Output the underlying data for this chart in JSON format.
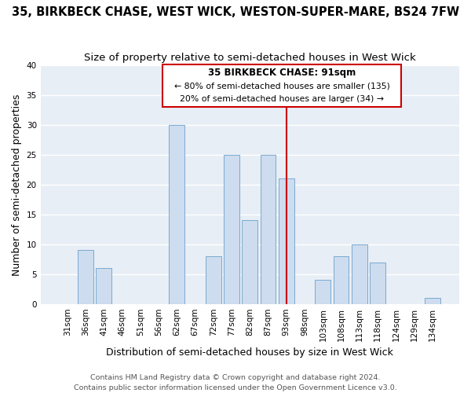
{
  "title": "35, BIRKBECK CHASE, WEST WICK, WESTON-SUPER-MARE, BS24 7FW",
  "subtitle": "Size of property relative to semi-detached houses in West Wick",
  "xlabel": "Distribution of semi-detached houses by size in West Wick",
  "ylabel": "Number of semi-detached properties",
  "bar_labels": [
    "31sqm",
    "36sqm",
    "41sqm",
    "46sqm",
    "51sqm",
    "56sqm",
    "62sqm",
    "67sqm",
    "72sqm",
    "77sqm",
    "82sqm",
    "87sqm",
    "93sqm",
    "98sqm",
    "103sqm",
    "108sqm",
    "113sqm",
    "118sqm",
    "124sqm",
    "129sqm",
    "134sqm"
  ],
  "bar_values": [
    0,
    9,
    6,
    0,
    0,
    0,
    30,
    0,
    8,
    25,
    14,
    25,
    21,
    0,
    4,
    8,
    10,
    7,
    0,
    0,
    1
  ],
  "bar_color": "#cddcee",
  "bar_edge_color": "#7aaad0",
  "vline_x_index": 12,
  "vline_color": "#cc0000",
  "ylim": [
    0,
    40
  ],
  "yticks": [
    0,
    5,
    10,
    15,
    20,
    25,
    30,
    35,
    40
  ],
  "annotation_title": "35 BIRKBECK CHASE: 91sqm",
  "annotation_line1": "← 80% of semi-detached houses are smaller (135)",
  "annotation_line2": "20% of semi-detached houses are larger (34) →",
  "footer1": "Contains HM Land Registry data © Crown copyright and database right 2024.",
  "footer2": "Contains public sector information licensed under the Open Government Licence v3.0.",
  "background_color": "#ffffff",
  "plot_bg_color": "#e8eef5",
  "grid_color": "#ffffff",
  "title_fontsize": 10.5,
  "subtitle_fontsize": 9.5,
  "axis_label_fontsize": 9,
  "tick_fontsize": 7.5,
  "footer_fontsize": 6.8
}
